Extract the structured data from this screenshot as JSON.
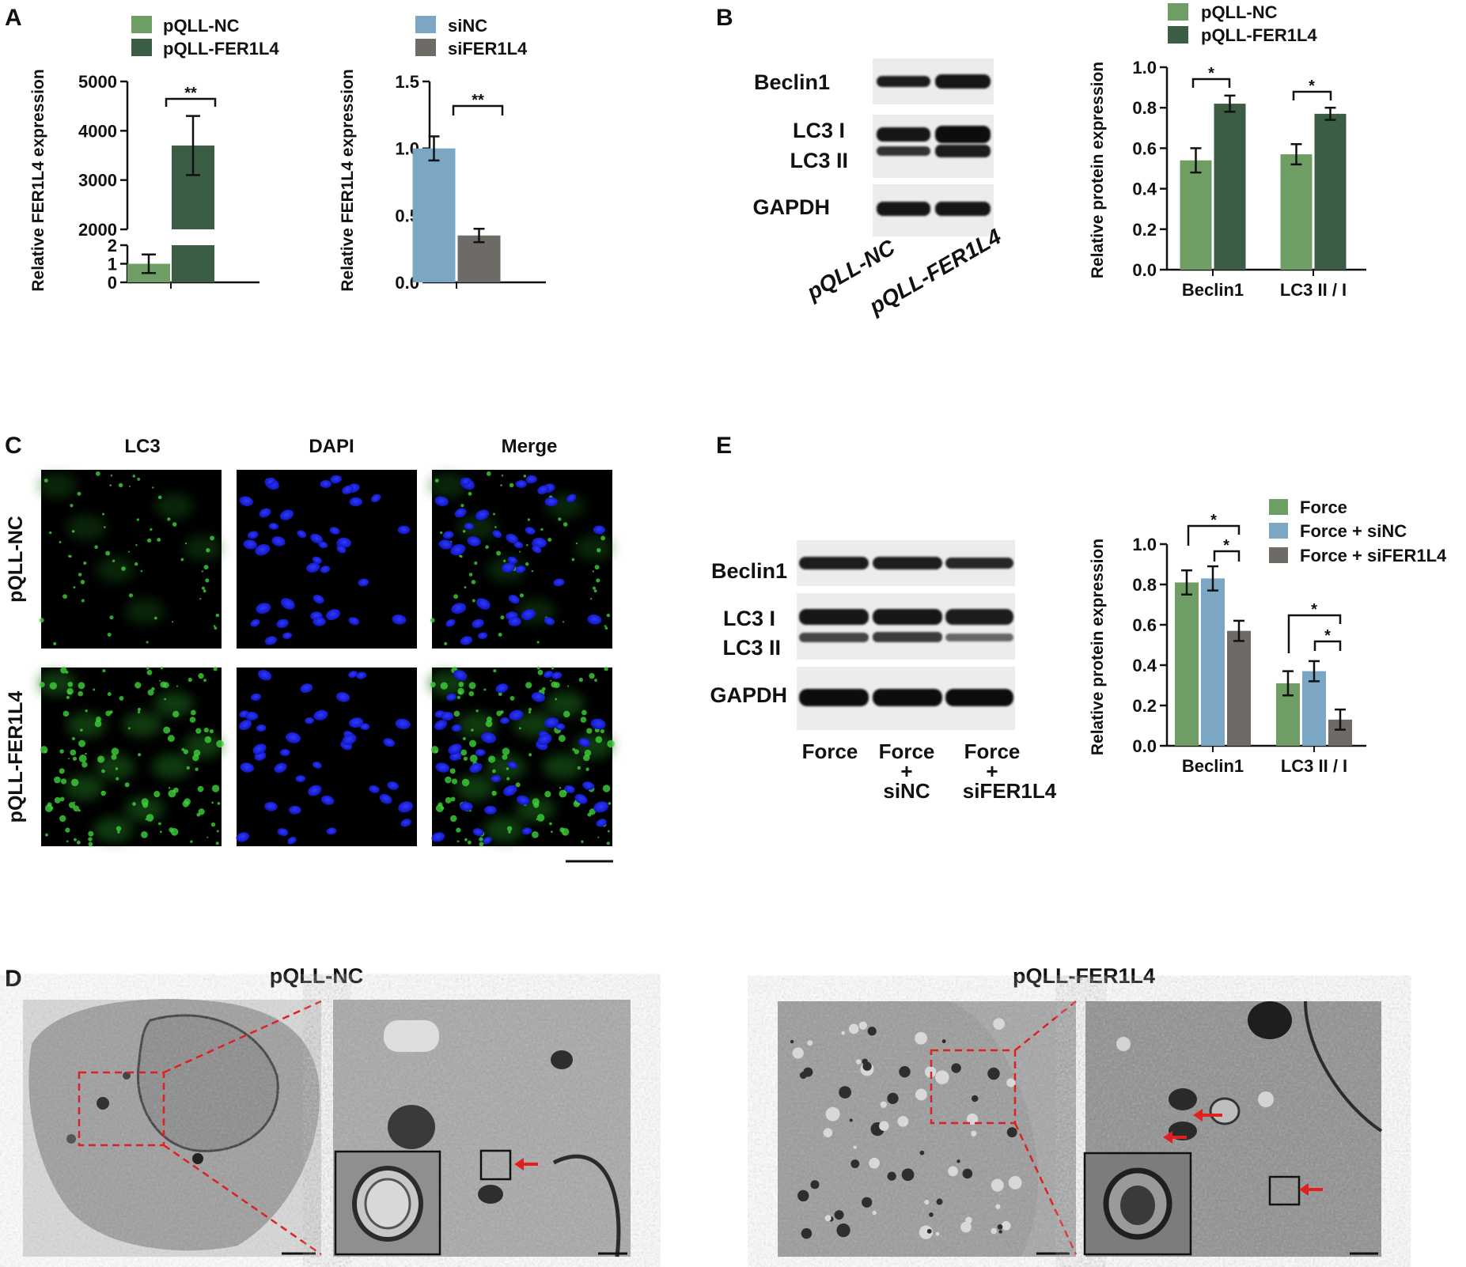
{
  "colors": {
    "green_light": "#6e9e63",
    "green_dark": "#3a5d44",
    "blue": "#7ba7c4",
    "gray": "#6e6a66",
    "red_marker": "#e02020",
    "lc3_green": "#3ed13a",
    "dapi_blue": "#1a22e0",
    "em_gray": "#b3b3b3"
  },
  "panels": {
    "A": {
      "letter": "A",
      "left_chart": {
        "legend": [
          "pQLL-NC",
          "pQLL-FER1L4"
        ],
        "ylabel": "Relative FER1L4 expression",
        "sig": "**"
      },
      "right_chart": {
        "legend": [
          "siNC",
          "siFER1L4"
        ],
        "ylabel": "Relative FER1L4 expression",
        "sig": "**"
      }
    },
    "B": {
      "letter": "B",
      "blot": {
        "rows": [
          "Beclin1",
          "LC3 I",
          "LC3 II",
          "GAPDH"
        ],
        "lanes": [
          "pQLL-NC",
          "pQLL-FER1L4"
        ]
      },
      "chart": {
        "legend": [
          "pQLL-NC",
          "pQLL-FER1L4"
        ],
        "ylabel": "Relative protein expression",
        "sig": [
          "*",
          "*"
        ]
      }
    },
    "C": {
      "letter": "C",
      "columns": [
        "LC3",
        "DAPI",
        "Merge"
      ],
      "rows": [
        "pQLL-NC",
        "pQLL-FER1L4"
      ]
    },
    "D": {
      "letter": "D",
      "groups": [
        "pQLL-NC",
        "pQLL-FER1L4"
      ]
    },
    "E": {
      "letter": "E",
      "blot": {
        "rows": [
          "Beclin1",
          "LC3 I",
          "LC3 II",
          "GAPDH"
        ],
        "lanes": [
          {
            "top": "Force",
            "mid": "",
            "bottom": ""
          },
          {
            "top": "Force",
            "mid": "+",
            "bottom": "siNC"
          },
          {
            "top": "Force",
            "mid": "+",
            "bottom": "siFER1L4"
          }
        ]
      },
      "chart": {
        "legend": [
          "Force",
          "Force + siNC",
          "Force + siFER1L4"
        ],
        "ylabel": "Relative protein expression",
        "sig": [
          "*",
          "*",
          "*",
          "*"
        ]
      }
    }
  },
  "chart_data": [
    {
      "id": "A-left",
      "type": "bar",
      "categories": [
        ""
      ],
      "series": [
        {
          "name": "pQLL-NC",
          "values": [
            1.0
          ],
          "error": [
            0.5
          ]
        },
        {
          "name": "pQLL-FER1L4",
          "values": [
            3700
          ],
          "error": [
            600
          ]
        }
      ],
      "ylabel": "Relative FER1L4 expression",
      "axis_break": {
        "lower": [
          0,
          2
        ],
        "upper": [
          2000,
          5000
        ]
      },
      "yticks_lower": [
        "0",
        "1",
        "2"
      ],
      "yticks_upper": [
        "2000",
        "3000",
        "4000",
        "5000"
      ],
      "significance": "**"
    },
    {
      "id": "A-right",
      "type": "bar",
      "categories": [
        ""
      ],
      "series": [
        {
          "name": "siNC",
          "values": [
            1.0
          ],
          "error": [
            0.09
          ]
        },
        {
          "name": "siFER1L4",
          "values": [
            0.35
          ],
          "error": [
            0.05
          ]
        }
      ],
      "ylabel": "Relative FER1L4 expression",
      "ylim": [
        0,
        1.5
      ],
      "yticks": [
        "0.0",
        "0.5",
        "1.0",
        "1.5"
      ],
      "significance": "**"
    },
    {
      "id": "B",
      "type": "bar",
      "categories": [
        "Beclin1",
        "LC3 II / I"
      ],
      "series": [
        {
          "name": "pQLL-NC",
          "values": [
            0.54,
            0.57
          ],
          "error": [
            0.06,
            0.05
          ]
        },
        {
          "name": "pQLL-FER1L4",
          "values": [
            0.82,
            0.77
          ],
          "error": [
            0.04,
            0.03
          ]
        }
      ],
      "ylabel": "Relative protein expression",
      "ylim": [
        0,
        1.0
      ],
      "yticks": [
        "0.0",
        "0.2",
        "0.4",
        "0.6",
        "0.8",
        "1.0"
      ],
      "legend_position": "top",
      "significance": [
        "*",
        "*"
      ]
    },
    {
      "id": "E",
      "type": "bar",
      "categories": [
        "Beclin1",
        "LC3 II / I"
      ],
      "series": [
        {
          "name": "Force",
          "values": [
            0.81,
            0.31
          ],
          "error": [
            0.06,
            0.06
          ]
        },
        {
          "name": "Force + siNC",
          "values": [
            0.83,
            0.37
          ],
          "error": [
            0.06,
            0.05
          ]
        },
        {
          "name": "Force + siFER1L4",
          "values": [
            0.57,
            0.13
          ],
          "error": [
            0.05,
            0.05
          ]
        }
      ],
      "ylabel": "Relative protein expression",
      "ylim": [
        0,
        1.0
      ],
      "yticks": [
        "0.0",
        "0.2",
        "0.4",
        "0.6",
        "0.8",
        "1.0"
      ],
      "legend_position": "top-right",
      "significance": [
        "*",
        "*",
        "*",
        "*"
      ]
    }
  ]
}
